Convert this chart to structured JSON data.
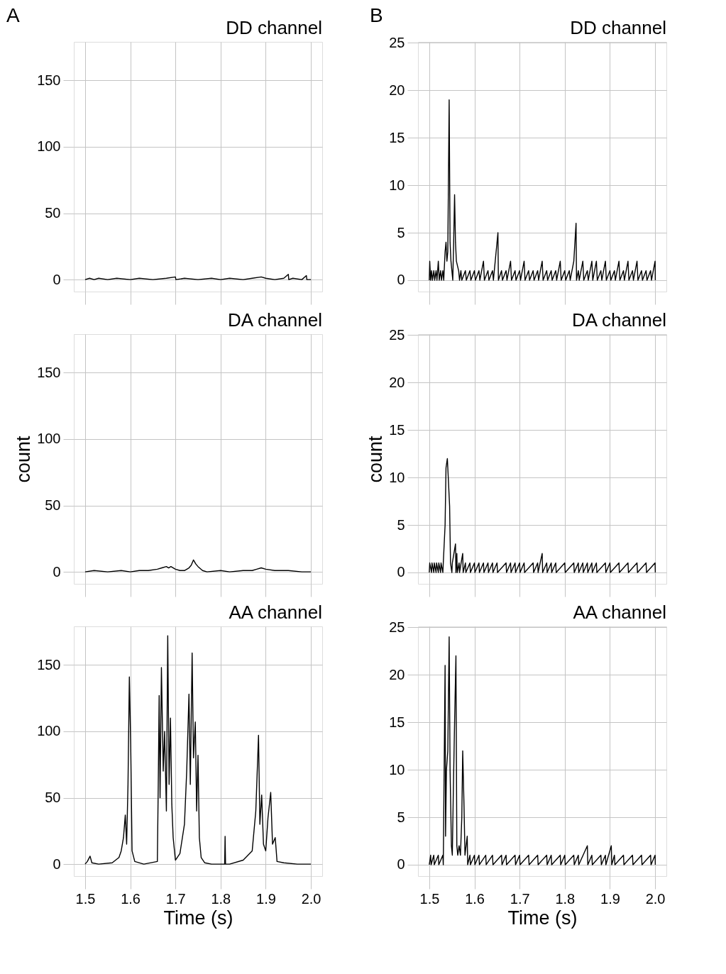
{
  "chart_data": [
    {
      "type": "line",
      "title": "DD channel",
      "annotations": [
        "A"
      ],
      "tick_labels": "y",
      "grid": true,
      "xlim": [
        1.475,
        2.025
      ],
      "ylim": [
        -9,
        179
      ],
      "xticks": [
        1.5,
        1.6,
        1.7,
        1.8,
        1.9,
        2
      ],
      "yticks": [
        0,
        50,
        100,
        150
      ],
      "x": [
        1.5,
        1.51,
        1.52,
        1.53,
        1.55,
        1.57,
        1.6,
        1.62,
        1.65,
        1.68,
        1.7,
        1.701,
        1.72,
        1.75,
        1.78,
        1.8,
        1.82,
        1.85,
        1.87,
        1.89,
        1.9,
        1.92,
        1.94,
        1.95,
        1.951,
        1.96,
        1.98,
        1.99,
        1.991,
        2.0
      ],
      "series": [
        {
          "color": "#000000",
          "values": [
            0,
            1,
            0,
            1,
            0,
            1,
            0,
            1,
            0,
            1,
            2,
            0,
            1,
            0,
            1,
            0,
            1,
            0,
            1,
            2,
            1,
            0,
            1,
            4,
            0,
            1,
            0,
            3,
            0,
            0
          ]
        }
      ]
    },
    {
      "type": "line",
      "title": "DD channel",
      "annotations": [
        "B"
      ],
      "tick_labels": "y",
      "grid": true,
      "xlim": [
        1.475,
        2.025
      ],
      "ylim": [
        -1.2,
        25.1
      ],
      "xticks": [
        1.5,
        1.6,
        1.7,
        1.8,
        1.9,
        2
      ],
      "yticks": [
        0,
        5,
        10,
        15,
        20,
        25
      ],
      "x": [
        1.5,
        1.501,
        1.503,
        1.505,
        1.507,
        1.51,
        1.512,
        1.515,
        1.517,
        1.52,
        1.522,
        1.525,
        1.527,
        1.53,
        1.532,
        1.535,
        1.537,
        1.539,
        1.541,
        1.544,
        1.546,
        1.548,
        1.55,
        1.552,
        1.554,
        1.556,
        1.558,
        1.56,
        1.565,
        1.567,
        1.57,
        1.572,
        1.58,
        1.582,
        1.59,
        1.592,
        1.6,
        1.602,
        1.61,
        1.612,
        1.62,
        1.622,
        1.63,
        1.632,
        1.64,
        1.642,
        1.652,
        1.653,
        1.66,
        1.662,
        1.67,
        1.672,
        1.68,
        1.682,
        1.69,
        1.692,
        1.7,
        1.702,
        1.71,
        1.712,
        1.72,
        1.722,
        1.73,
        1.732,
        1.74,
        1.742,
        1.75,
        1.752,
        1.76,
        1.762,
        1.77,
        1.772,
        1.78,
        1.782,
        1.79,
        1.792,
        1.8,
        1.802,
        1.81,
        1.812,
        1.82,
        1.825,
        1.826,
        1.83,
        1.832,
        1.84,
        1.842,
        1.85,
        1.852,
        1.86,
        1.862,
        1.87,
        1.872,
        1.88,
        1.882,
        1.89,
        1.892,
        1.9,
        1.902,
        1.91,
        1.912,
        1.92,
        1.922,
        1.93,
        1.932,
        1.94,
        1.942,
        1.95,
        1.952,
        1.96,
        1.962,
        1.97,
        1.972,
        1.98,
        1.982,
        1.99,
        1.992,
        2.0,
        2.0005
      ],
      "series": [
        {
          "color": "#000000",
          "values": [
            0,
            2,
            0,
            1,
            0,
            1,
            0,
            1,
            0,
            2,
            0,
            1,
            0,
            1,
            0,
            3,
            4,
            2,
            3,
            19,
            4,
            2,
            1,
            0,
            4,
            9,
            4,
            2,
            1,
            0,
            1,
            0,
            1,
            0,
            1,
            0,
            1,
            0,
            1,
            0,
            2,
            0,
            1,
            0,
            1,
            0,
            5,
            0,
            1,
            0,
            1,
            0,
            2,
            0,
            1,
            0,
            1,
            0,
            2,
            0,
            1,
            0,
            1,
            0,
            1,
            0,
            2,
            0,
            1,
            0,
            1,
            0,
            1,
            0,
            2,
            0,
            1,
            0,
            1,
            0,
            2,
            6,
            0,
            1,
            0,
            2,
            0,
            1,
            0,
            2,
            0,
            2,
            0,
            1,
            0,
            2,
            0,
            1,
            0,
            1,
            0,
            2,
            0,
            1,
            0,
            2,
            0,
            1,
            0,
            2,
            0,
            1,
            0,
            1,
            0,
            1,
            0,
            2,
            0
          ]
        }
      ]
    },
    {
      "type": "line",
      "title": "DA channel",
      "ylabel": "count",
      "tick_labels": "y",
      "grid": true,
      "xlim": [
        1.475,
        2.025
      ],
      "ylim": [
        -9,
        179
      ],
      "xticks": [
        1.5,
        1.6,
        1.7,
        1.8,
        1.9,
        2
      ],
      "yticks": [
        0,
        50,
        100,
        150
      ],
      "x": [
        1.5,
        1.52,
        1.55,
        1.58,
        1.6,
        1.62,
        1.64,
        1.66,
        1.67,
        1.68,
        1.685,
        1.69,
        1.7,
        1.71,
        1.72,
        1.73,
        1.735,
        1.74,
        1.745,
        1.75,
        1.76,
        1.77,
        1.8,
        1.82,
        1.85,
        1.87,
        1.88,
        1.89,
        1.9,
        1.92,
        1.95,
        1.98,
        2.0
      ],
      "series": [
        {
          "color": "#000000",
          "values": [
            0,
            1,
            0,
            1,
            0,
            1,
            1,
            2,
            3,
            4,
            3,
            4,
            2,
            1,
            1,
            3,
            5,
            9,
            6,
            4,
            1,
            0,
            1,
            0,
            1,
            1,
            2,
            3,
            2,
            1,
            1,
            0,
            0
          ]
        }
      ]
    },
    {
      "type": "line",
      "title": "DA channel",
      "ylabel": "count",
      "tick_labels": "y",
      "grid": true,
      "xlim": [
        1.475,
        2.025
      ],
      "ylim": [
        -1.2,
        25.1
      ],
      "xticks": [
        1.5,
        1.6,
        1.7,
        1.8,
        1.9,
        2
      ],
      "yticks": [
        0,
        5,
        10,
        15,
        20,
        25
      ],
      "x": [
        1.5,
        1.501,
        1.505,
        1.506,
        1.51,
        1.511,
        1.515,
        1.516,
        1.52,
        1.521,
        1.525,
        1.526,
        1.53,
        1.531,
        1.535,
        1.537,
        1.54,
        1.543,
        1.545,
        1.547,
        1.55,
        1.551,
        1.558,
        1.559,
        1.561,
        1.562,
        1.566,
        1.567,
        1.574,
        1.575,
        1.58,
        1.581,
        1.59,
        1.591,
        1.6,
        1.601,
        1.61,
        1.611,
        1.62,
        1.621,
        1.63,
        1.631,
        1.64,
        1.641,
        1.65,
        1.651,
        1.67,
        1.671,
        1.68,
        1.681,
        1.69,
        1.691,
        1.7,
        1.701,
        1.71,
        1.711,
        1.73,
        1.731,
        1.74,
        1.741,
        1.75,
        1.751,
        1.76,
        1.761,
        1.77,
        1.771,
        1.78,
        1.781,
        1.8,
        1.801,
        1.82,
        1.821,
        1.83,
        1.831,
        1.84,
        1.841,
        1.85,
        1.851,
        1.86,
        1.861,
        1.87,
        1.871,
        1.89,
        1.891,
        1.9,
        1.901,
        1.92,
        1.921,
        1.94,
        1.941,
        1.96,
        1.961,
        1.98,
        1.981,
        2.0,
        2.0005
      ],
      "series": [
        {
          "color": "#000000",
          "values": [
            0,
            1,
            0,
            1,
            0,
            1,
            0,
            1,
            0,
            1,
            0,
            1,
            0,
            1,
            5,
            11,
            12,
            9,
            7,
            1,
            0,
            1,
            3,
            0,
            2,
            0,
            1,
            0,
            2,
            0,
            1,
            0,
            1,
            0,
            1,
            0,
            1,
            0,
            1,
            0,
            1,
            0,
            1,
            0,
            1,
            0,
            1,
            0,
            1,
            0,
            1,
            0,
            1,
            0,
            1,
            0,
            1,
            0,
            1,
            0,
            2,
            0,
            1,
            0,
            1,
            0,
            1,
            0,
            1,
            0,
            1,
            0,
            1,
            0,
            1,
            0,
            1,
            0,
            1,
            0,
            1,
            0,
            1,
            0,
            1,
            0,
            1,
            0,
            1,
            0,
            1,
            0,
            1,
            0,
            1,
            0
          ]
        }
      ]
    },
    {
      "type": "line",
      "title": "AA channel",
      "xlabel": "Time (s)",
      "grid": true,
      "xlim": [
        1.475,
        2.025
      ],
      "ylim": [
        -9,
        179
      ],
      "xticks": [
        1.5,
        1.6,
        1.7,
        1.8,
        1.9,
        {
          "value": 2,
          "label": "2.0"
        }
      ],
      "yticks": [
        0,
        50,
        100,
        150
      ],
      "x": [
        1.5,
        1.505,
        1.511,
        1.515,
        1.53,
        1.56,
        1.575,
        1.58,
        1.585,
        1.589,
        1.592,
        1.595,
        1.598,
        1.601,
        1.604,
        1.61,
        1.63,
        1.66,
        1.662,
        1.664,
        1.666,
        1.669,
        1.673,
        1.676,
        1.68,
        1.683,
        1.686,
        1.689,
        1.692,
        1.695,
        1.7,
        1.71,
        1.72,
        1.725,
        1.73,
        1.733,
        1.737,
        1.74,
        1.744,
        1.747,
        1.75,
        1.753,
        1.757,
        1.765,
        1.78,
        1.809,
        1.81,
        1.811,
        1.82,
        1.85,
        1.87,
        1.878,
        1.884,
        1.887,
        1.891,
        1.895,
        1.9,
        1.905,
        1.911,
        1.915,
        1.921,
        1.925,
        1.94,
        1.97,
        2.0
      ],
      "series": [
        {
          "color": "#000000",
          "values": [
            0,
            2,
            6,
            1,
            0,
            1,
            5,
            10,
            20,
            37,
            15,
            60,
            141,
            90,
            10,
            2,
            0,
            2,
            60,
            127,
            50,
            148,
            70,
            100,
            40,
            172,
            60,
            110,
            45,
            20,
            3,
            8,
            30,
            70,
            128,
            60,
            159,
            80,
            107,
            40,
            82,
            20,
            5,
            1,
            0,
            0,
            21,
            0,
            0,
            3,
            10,
            40,
            97,
            30,
            52,
            15,
            10,
            35,
            54,
            15,
            20,
            2,
            1,
            0,
            0
          ]
        }
      ]
    },
    {
      "type": "line",
      "title": "AA channel",
      "xlabel": "Time (s)",
      "grid": true,
      "xlim": [
        1.475,
        2.025
      ],
      "ylim": [
        -1.2,
        25.1
      ],
      "xticks": [
        1.5,
        1.6,
        1.7,
        1.8,
        1.9,
        {
          "value": 2,
          "label": "2.0"
        }
      ],
      "yticks": [
        0,
        5,
        10,
        15,
        20,
        25
      ],
      "x": [
        1.5,
        1.503,
        1.504,
        1.51,
        1.511,
        1.52,
        1.521,
        1.53,
        1.531,
        1.535,
        1.536,
        1.538,
        1.541,
        1.544,
        1.546,
        1.549,
        1.551,
        1.553,
        1.556,
        1.559,
        1.561,
        1.563,
        1.566,
        1.569,
        1.572,
        1.574,
        1.577,
        1.579,
        1.584,
        1.585,
        1.59,
        1.591,
        1.6,
        1.601,
        1.61,
        1.611,
        1.625,
        1.626,
        1.64,
        1.641,
        1.66,
        1.661,
        1.67,
        1.671,
        1.69,
        1.691,
        1.7,
        1.701,
        1.72,
        1.721,
        1.74,
        1.741,
        1.76,
        1.761,
        1.77,
        1.771,
        1.79,
        1.791,
        1.8,
        1.801,
        1.82,
        1.821,
        1.83,
        1.831,
        1.85,
        1.851,
        1.86,
        1.861,
        1.88,
        1.881,
        1.89,
        1.891,
        1.903,
        1.904,
        1.91,
        1.911,
        1.93,
        1.931,
        1.95,
        1.951,
        1.97,
        1.971,
        1.99,
        1.991,
        2.0,
        2.0005
      ],
      "series": [
        {
          "color": "#000000",
          "values": [
            0,
            1,
            0,
            1,
            0,
            1,
            0,
            1,
            0,
            21,
            3,
            10,
            12,
            24,
            10,
            2,
            1,
            7,
            15,
            22,
            2,
            1,
            2,
            1,
            5,
            12,
            6,
            1,
            3,
            0,
            1,
            0,
            1,
            0,
            1,
            0,
            1,
            0,
            1,
            0,
            1,
            0,
            1,
            0,
            1,
            0,
            1,
            0,
            1,
            0,
            1,
            0,
            1,
            0,
            1,
            0,
            1,
            0,
            1,
            0,
            1,
            0,
            1,
            0,
            2,
            0,
            1,
            0,
            1,
            0,
            1,
            0,
            2,
            0,
            1,
            0,
            1,
            0,
            1,
            0,
            1,
            0,
            1,
            0,
            1,
            0
          ]
        }
      ]
    }
  ]
}
